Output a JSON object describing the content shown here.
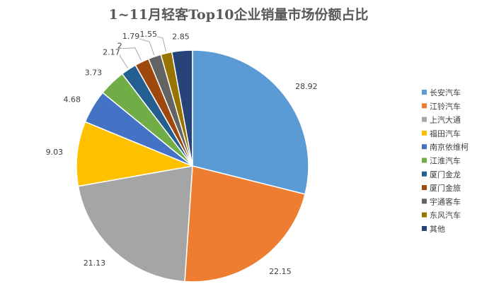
{
  "chart_data": {
    "type": "pie",
    "title": "1~11月轻客Top10企业销量市场份额占比",
    "categories": [
      "长安汽车",
      "江铃汽车",
      "上汽大通",
      "福田汽车",
      "南京依维柯",
      "江淮汽车",
      "厦门金龙",
      "厦门金旅",
      "宇通客车",
      "东风汽车",
      "其他"
    ],
    "values": [
      28.92,
      22.15,
      21.13,
      9.03,
      4.68,
      3.73,
      2.17,
      2,
      1.79,
      1.55,
      2.85
    ],
    "value_labels": [
      "28.92",
      "22.15",
      "21.13",
      "9.03",
      "4.68",
      "3.73",
      "2.17",
      "2",
      "1.79",
      "1.55",
      "2.85"
    ],
    "colors": [
      "#5B9BD5",
      "#ED7D31",
      "#A5A5A5",
      "#FFC000",
      "#4472C4",
      "#70AD47",
      "#255E91",
      "#9E480E",
      "#636363",
      "#997300",
      "#264478"
    ],
    "legend_position": "right",
    "start_angle": "12 o'clock",
    "direction": "clockwise"
  }
}
